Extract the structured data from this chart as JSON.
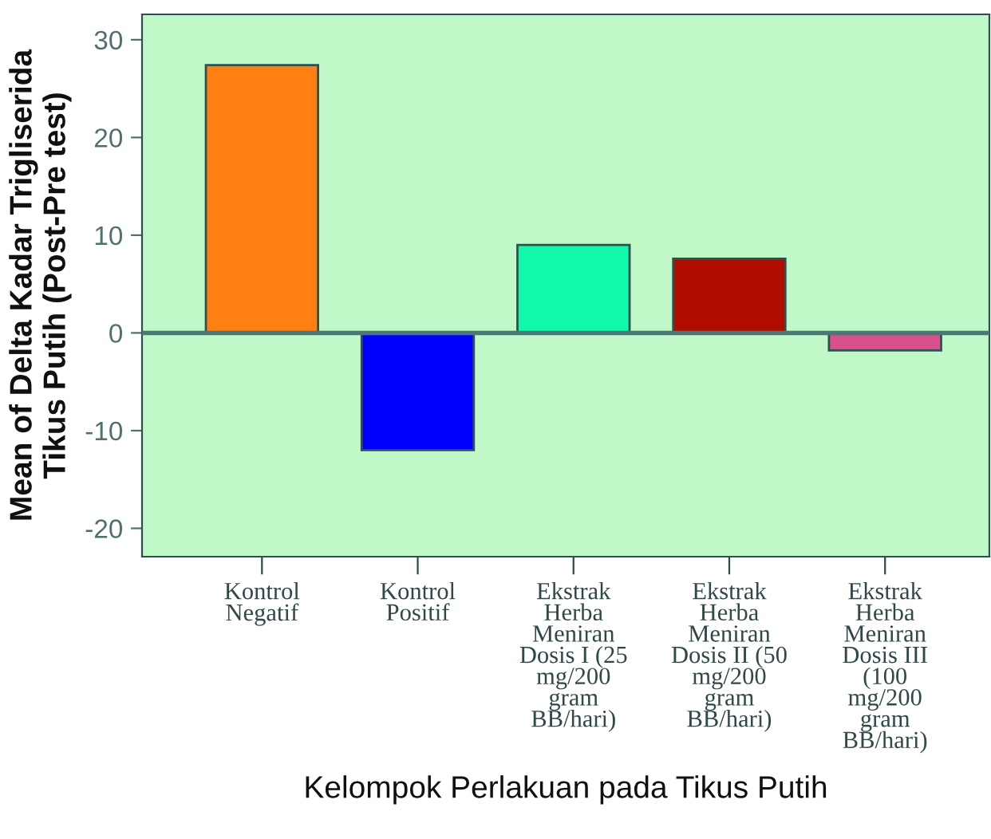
{
  "chart_data": {
    "type": "bar",
    "xlabel": "Kelompok Perlakuan pada Tikus Putih",
    "ylabel": "Mean of Delta Kadar Trigliserida\nTikus Putih (Post-Pre test)",
    "categories": [
      "Kontrol\nNegatif",
      "Kontrol\nPositif",
      "Ekstrak\nHerba\nMeniran\nDosis I (25\nmg/200\ngram\nBB/hari)",
      "Ekstrak\nHerba\nMeniran\nDosis II (50\nmg/200\ngram\nBB/hari)",
      "Ekstrak\nHerba\nMeniran\nDosis III\n(100\nmg/200\ngram\nBB/hari)"
    ],
    "values": [
      27.4,
      -12.0,
      9.0,
      7.6,
      -1.8
    ],
    "colors": [
      "#ff8010",
      "#0000ff",
      "#10f8a8",
      "#b00c00",
      "#d8508c"
    ],
    "ylim": [
      -22.9,
      32.6
    ],
    "yticks": [
      -20,
      -10,
      0,
      10,
      20,
      30
    ],
    "ref_lines": [
      {
        "axis": "y",
        "value": 0,
        "color": "#4a7878"
      }
    ],
    "grid": false,
    "legend": false
  }
}
